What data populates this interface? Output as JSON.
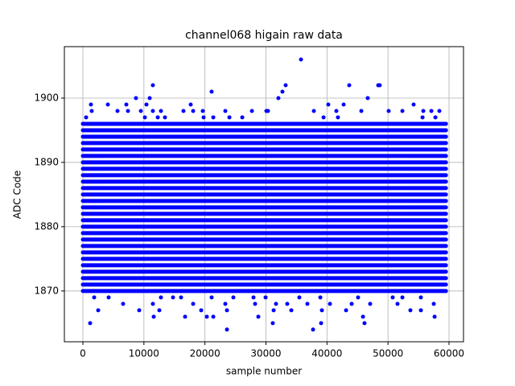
{
  "chart_data": {
    "type": "scatter",
    "title": "channel068 higain raw data",
    "xlabel": "sample number",
    "ylabel": "ADC Code",
    "xlim": [
      -3033,
      62374
    ],
    "ylim": [
      1862.1,
      1908
    ],
    "xticks": [
      0,
      10000,
      20000,
      30000,
      40000,
      50000,
      60000
    ],
    "yticks": [
      1870,
      1880,
      1890,
      1900
    ],
    "grid": true,
    "color": "#0000ff",
    "bands": {
      "y": [
        1870,
        1871,
        1872,
        1873,
        1874,
        1875,
        1876,
        1877,
        1878,
        1879,
        1880,
        1881,
        1882,
        1883,
        1884,
        1885,
        1886,
        1887,
        1888,
        1889,
        1890,
        1891,
        1892,
        1893,
        1894,
        1895,
        1896
      ],
      "x_range": [
        0,
        59500
      ]
    },
    "series": [
      {
        "color": "#0000ff",
        "x": [
          35740,
          11470,
          33230,
          43650,
          48400,
          48650,
          21100,
          32700,
          8700,
          10950,
          32040,
          46680,
          1320,
          4090,
          7120,
          10420,
          17670,
          40220,
          42730,
          54200,
          1450,
          5670,
          7390,
          9500,
          11470,
          12790,
          16480,
          18070,
          19650,
          23340,
          27700,
          30070,
          30330,
          37850,
          41540,
          45630,
          50110,
          52360,
          55790,
          57110,
          58420,
          530,
          10160,
          12270,
          13450,
          19780,
          21370,
          24010,
          26120,
          39440,
          41800,
          55660,
          57770,
          1850,
          4220,
          12790,
          14770,
          16090,
          21100,
          24660,
          27960,
          29940,
          35470,
          38910,
          45100,
          50770,
          52360,
          55390,
          6590,
          11470,
          18070,
          23340,
          28220,
          31650,
          33490,
          36790,
          40490,
          44050,
          47080,
          51560,
          57500,
          2510,
          9230,
          12530,
          19390,
          23610,
          31260,
          34160,
          39170,
          43130,
          53670,
          55390,
          11610,
          16750,
          20310,
          21370,
          28750,
          45900,
          57640,
          1190,
          31120,
          39040,
          46150,
          23610,
          37720
        ],
        "y": [
          1906,
          1902,
          1902,
          1902,
          1902,
          1902,
          1901,
          1901,
          1900,
          1900,
          1900,
          1900,
          1899,
          1899,
          1899,
          1899,
          1899,
          1899,
          1899,
          1899,
          1898,
          1898,
          1898,
          1898,
          1898,
          1898,
          1898,
          1898,
          1898,
          1898,
          1898,
          1898,
          1898,
          1898,
          1898,
          1898,
          1898,
          1898,
          1898,
          1898,
          1898,
          1897,
          1897,
          1897,
          1897,
          1897,
          1897,
          1897,
          1897,
          1897,
          1897,
          1897,
          1897,
          1869,
          1869,
          1869,
          1869,
          1869,
          1869,
          1869,
          1869,
          1869,
          1869,
          1869,
          1869,
          1869,
          1869,
          1869,
          1868,
          1868,
          1868,
          1868,
          1868,
          1868,
          1868,
          1868,
          1868,
          1868,
          1868,
          1868,
          1868,
          1867,
          1867,
          1867,
          1867,
          1867,
          1867,
          1867,
          1867,
          1867,
          1867,
          1867,
          1866,
          1866,
          1866,
          1866,
          1866,
          1866,
          1866,
          1865,
          1865,
          1865,
          1865,
          1864,
          1864
        ]
      }
    ]
  }
}
